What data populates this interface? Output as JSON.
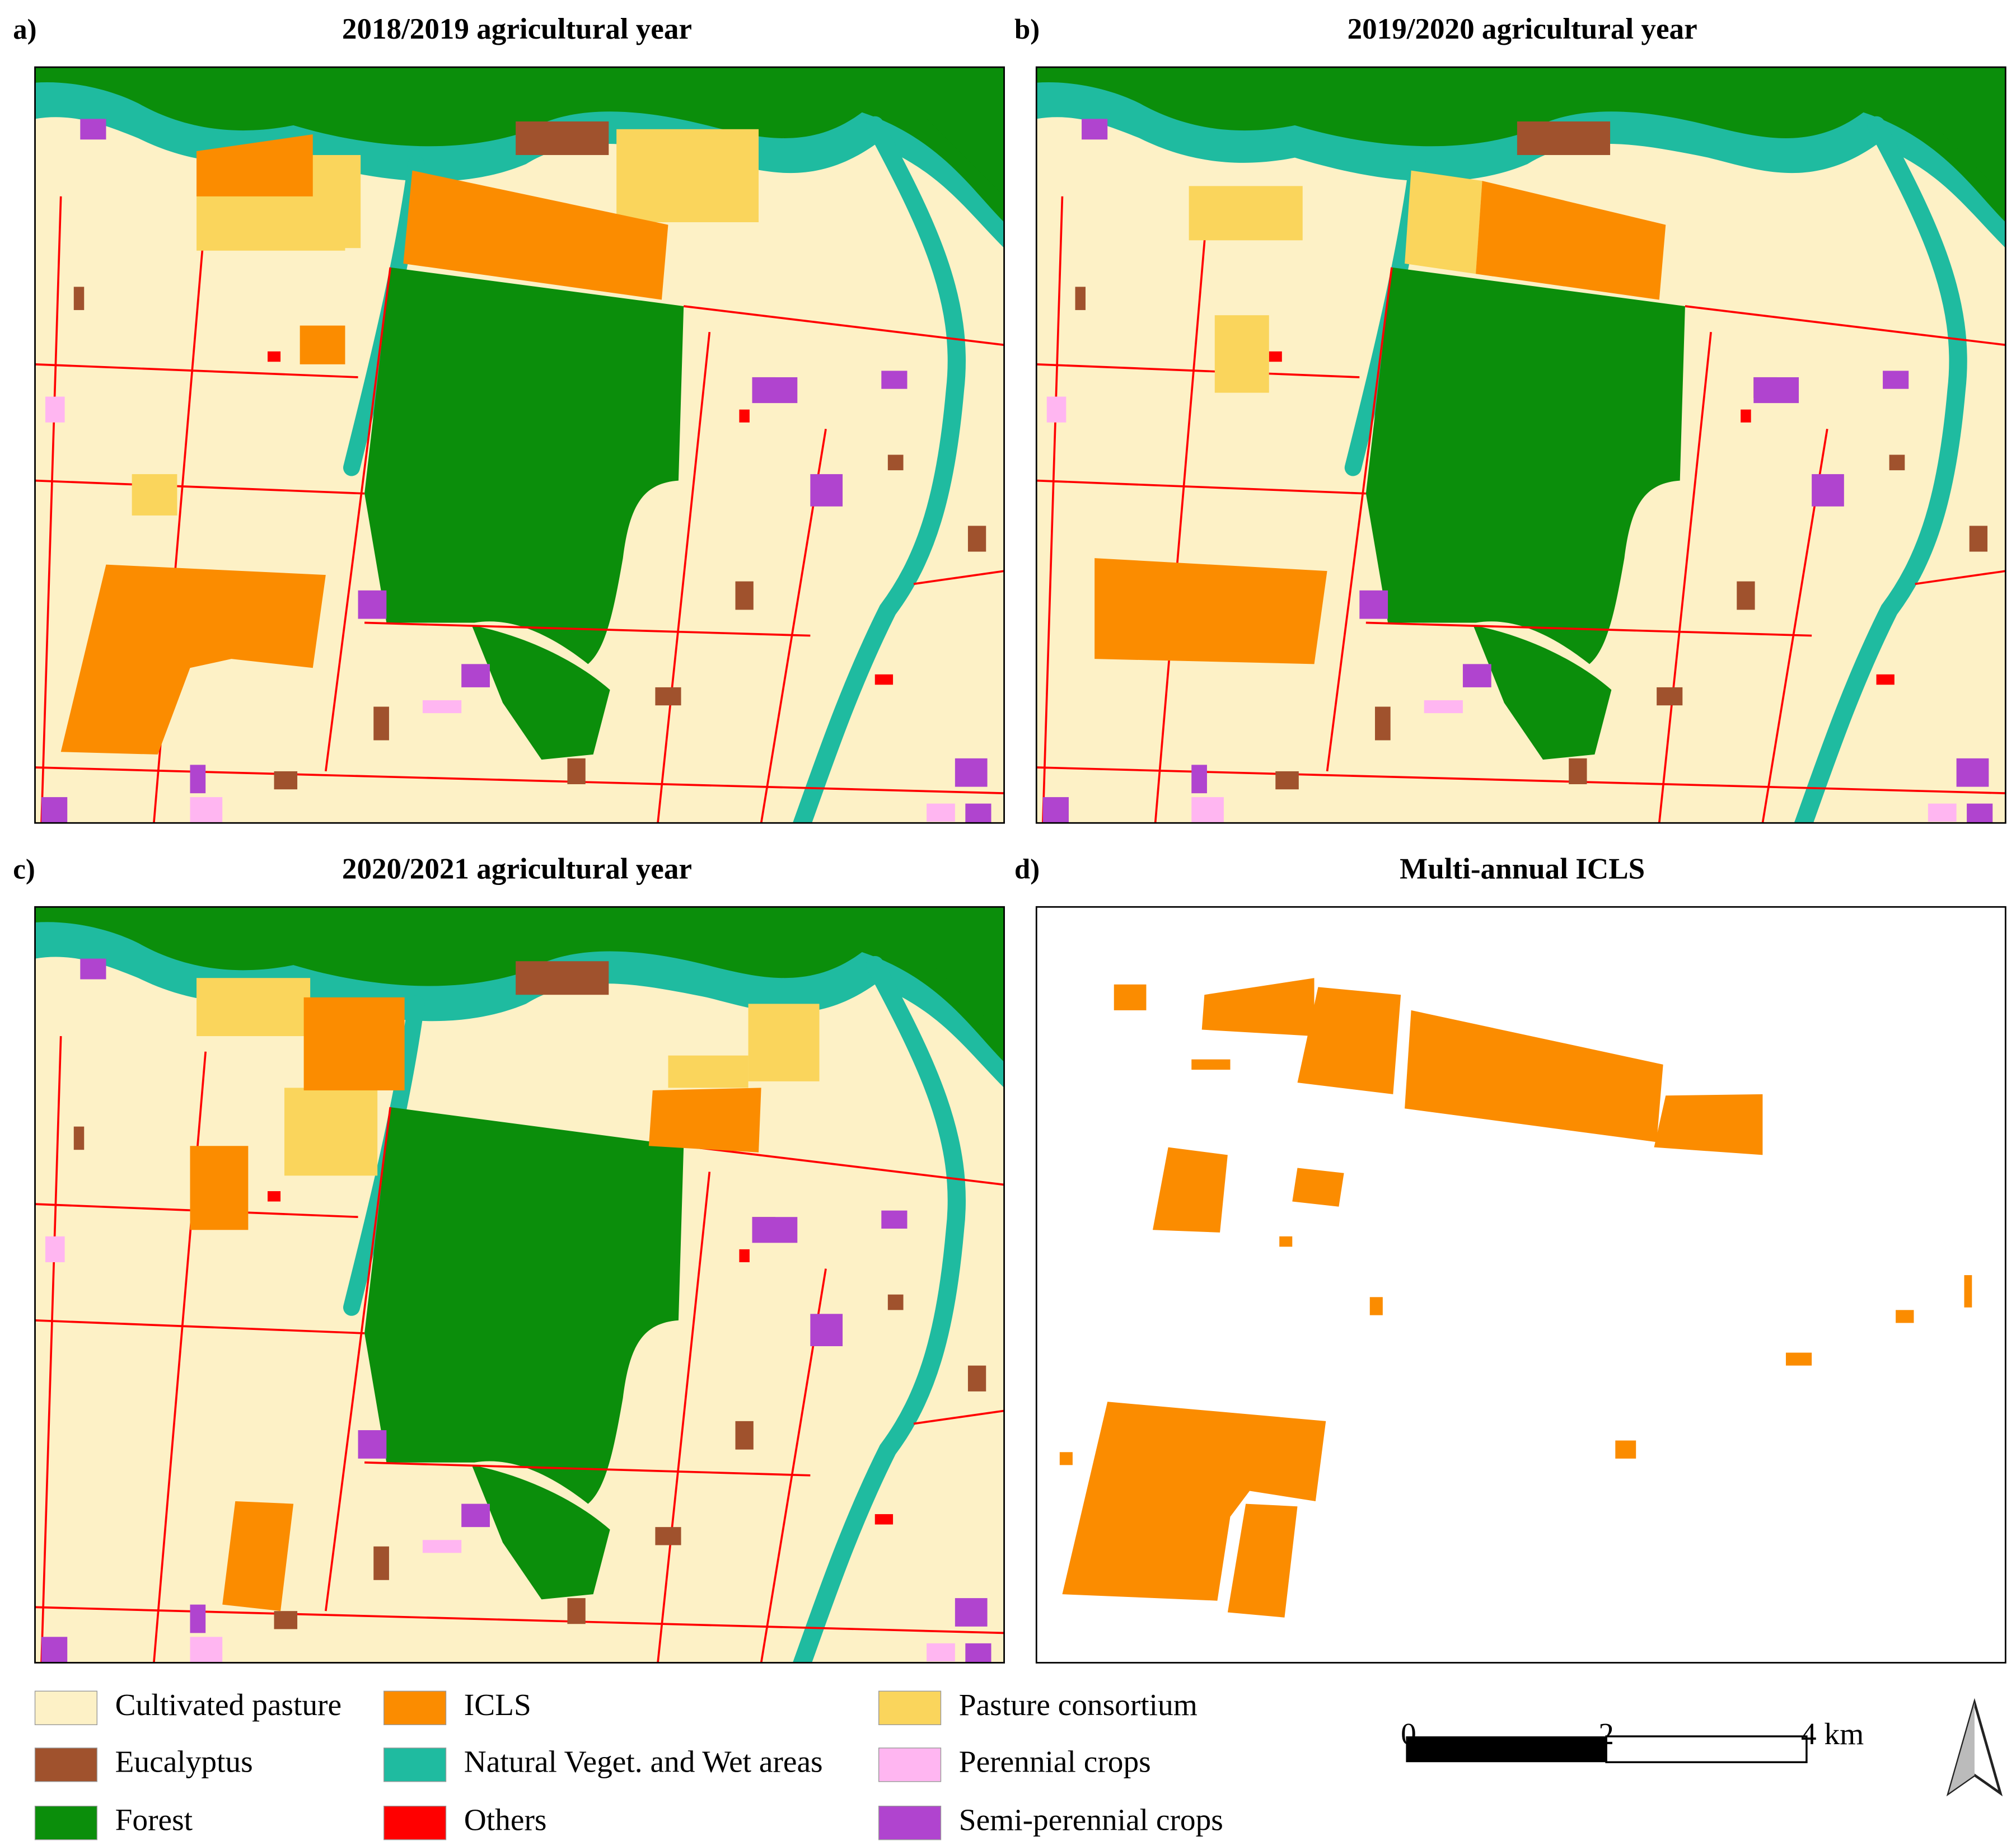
{
  "panels": [
    {
      "label": "a)",
      "title": "2018/2019 agricultural year"
    },
    {
      "label": "b)",
      "title": "2019/2020 agricultural year"
    },
    {
      "label": "c)",
      "title": "2020/2021 agricultural year"
    },
    {
      "label": "d)",
      "title": "Multi-annual ICLS"
    }
  ],
  "legend": {
    "items": [
      {
        "label": "Cultivated pasture",
        "color": "#fdf1c6"
      },
      {
        "label": "Eucalyptus",
        "color": "#a0522d"
      },
      {
        "label": "Forest",
        "color": "#0b8e0b"
      },
      {
        "label": "ICLS",
        "color": "#fb8c00"
      },
      {
        "label": "Natural Veget. and Wet areas",
        "color": "#1fbba0"
      },
      {
        "label": "Others",
        "color": "#ff0000"
      },
      {
        "label": "Pasture consortium",
        "color": "#fad55c"
      },
      {
        "label": "Perennial crops",
        "color": "#ffb6f1"
      },
      {
        "label": "Semi-perennial crops",
        "color": "#b044cf"
      }
    ]
  },
  "scale_bar": {
    "ticks": [
      "0",
      "2",
      "4 km"
    ]
  }
}
